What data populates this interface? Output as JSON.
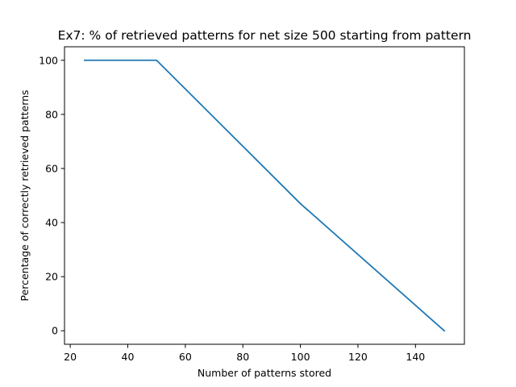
{
  "chart_data": {
    "type": "line",
    "title": "Ex7: % of retrieved patterns for net size 500 starting from pattern",
    "xlabel": "Number of patterns stored",
    "ylabel": "Percentage of correctly retrieved patterns",
    "xlim": [
      18,
      157
    ],
    "ylim": [
      -5,
      105
    ],
    "xticks": [
      20,
      40,
      60,
      80,
      100,
      120,
      140
    ],
    "yticks": [
      0,
      20,
      40,
      60,
      80,
      100
    ],
    "grid": false,
    "series": [
      {
        "color": "#1f77b4",
        "x": [
          25,
          50,
          100,
          150
        ],
        "y": [
          100,
          100,
          47,
          0
        ]
      }
    ]
  }
}
